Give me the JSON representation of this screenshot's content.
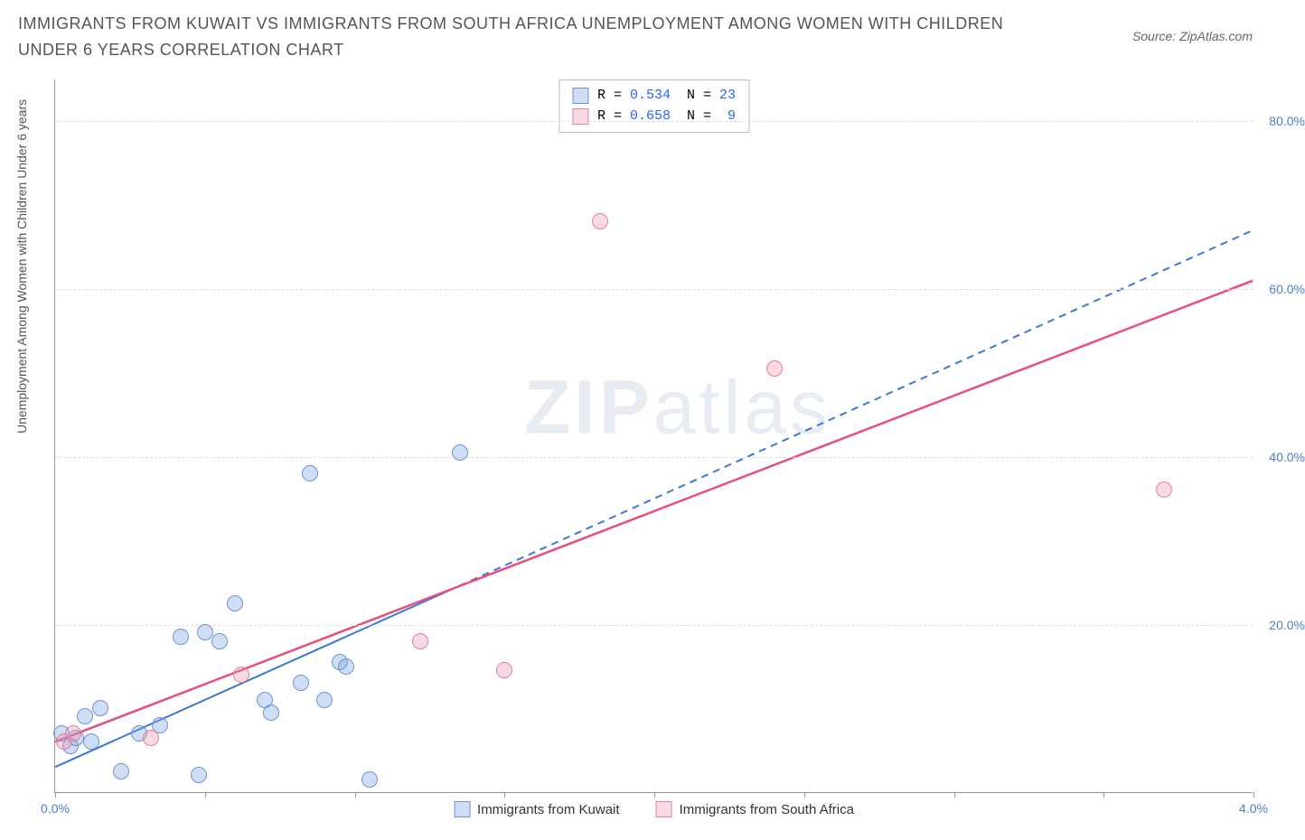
{
  "title": "IMMIGRANTS FROM KUWAIT VS IMMIGRANTS FROM SOUTH AFRICA UNEMPLOYMENT AMONG WOMEN WITH CHILDREN UNDER 6 YEARS CORRELATION CHART",
  "source": "Source: ZipAtlas.com",
  "y_axis_label": "Unemployment Among Women with Children Under 6 years",
  "watermark_bold": "ZIP",
  "watermark_light": "atlas",
  "chart": {
    "type": "scatter",
    "background_color": "#ffffff",
    "grid_color": "#dddddd",
    "axis_color": "#999999",
    "xlim": [
      0.0,
      4.0
    ],
    "ylim": [
      0.0,
      85.0
    ],
    "x_ticks": [
      0.0,
      0.5,
      1.0,
      1.5,
      2.0,
      2.5,
      3.0,
      3.5,
      4.0
    ],
    "x_tick_labels": [
      "0.0%",
      "",
      "",
      "",
      "",
      "",
      "",
      "",
      "4.0%"
    ],
    "y_ticks": [
      20.0,
      40.0,
      60.0,
      80.0
    ],
    "y_tick_labels": [
      "20.0%",
      "40.0%",
      "60.0%",
      "80.0%"
    ],
    "tick_label_color": "#4a7ec9",
    "tick_label_fontsize": 14,
    "marker_radius": 9,
    "marker_stroke_width": 1.5,
    "series": [
      {
        "name": "Immigrants from Kuwait",
        "fill": "rgba(120,160,220,0.35)",
        "stroke": "#6a95d8",
        "R": "0.534",
        "N": "23",
        "points": [
          {
            "x": 0.02,
            "y": 7.0
          },
          {
            "x": 0.05,
            "y": 5.5
          },
          {
            "x": 0.07,
            "y": 6.5
          },
          {
            "x": 0.1,
            "y": 9.0
          },
          {
            "x": 0.12,
            "y": 6.0
          },
          {
            "x": 0.15,
            "y": 10.0
          },
          {
            "x": 0.22,
            "y": 2.5
          },
          {
            "x": 0.28,
            "y": 7.0
          },
          {
            "x": 0.35,
            "y": 8.0
          },
          {
            "x": 0.42,
            "y": 18.5
          },
          {
            "x": 0.48,
            "y": 2.0
          },
          {
            "x": 0.5,
            "y": 19.0
          },
          {
            "x": 0.55,
            "y": 18.0
          },
          {
            "x": 0.6,
            "y": 22.5
          },
          {
            "x": 0.7,
            "y": 11.0
          },
          {
            "x": 0.72,
            "y": 9.5
          },
          {
            "x": 0.82,
            "y": 13.0
          },
          {
            "x": 0.85,
            "y": 38.0
          },
          {
            "x": 0.9,
            "y": 11.0
          },
          {
            "x": 0.95,
            "y": 15.5
          },
          {
            "x": 0.97,
            "y": 15.0
          },
          {
            "x": 1.05,
            "y": 1.5
          },
          {
            "x": 1.35,
            "y": 40.5
          }
        ],
        "trend": {
          "x1": 0.0,
          "y1": 3.0,
          "x2": 4.0,
          "y2": 67.0,
          "dashed_from_x": 1.35,
          "color": "#3b78d8",
          "width": 2
        }
      },
      {
        "name": "Immigrants from South Africa",
        "fill": "rgba(240,150,170,0.35)",
        "stroke": "#e37fa0",
        "R": "0.658",
        "N": "9",
        "points": [
          {
            "x": 0.03,
            "y": 6.0
          },
          {
            "x": 0.06,
            "y": 7.0
          },
          {
            "x": 0.32,
            "y": 6.5
          },
          {
            "x": 0.62,
            "y": 14.0
          },
          {
            "x": 1.22,
            "y": 18.0
          },
          {
            "x": 1.5,
            "y": 14.5
          },
          {
            "x": 1.82,
            "y": 68.0
          },
          {
            "x": 2.4,
            "y": 50.5
          },
          {
            "x": 3.7,
            "y": 36.0
          }
        ],
        "trend": {
          "x1": 0.0,
          "y1": 6.0,
          "x2": 4.0,
          "y2": 61.0,
          "color": "#e84f7a",
          "width": 2.5
        }
      }
    ]
  },
  "bottom_legend": [
    {
      "label": "Immigrants from Kuwait",
      "fill": "rgba(120,160,220,0.35)",
      "stroke": "#6a95d8"
    },
    {
      "label": "Immigrants from South Africa",
      "fill": "rgba(240,150,170,0.35)",
      "stroke": "#e37fa0"
    }
  ]
}
